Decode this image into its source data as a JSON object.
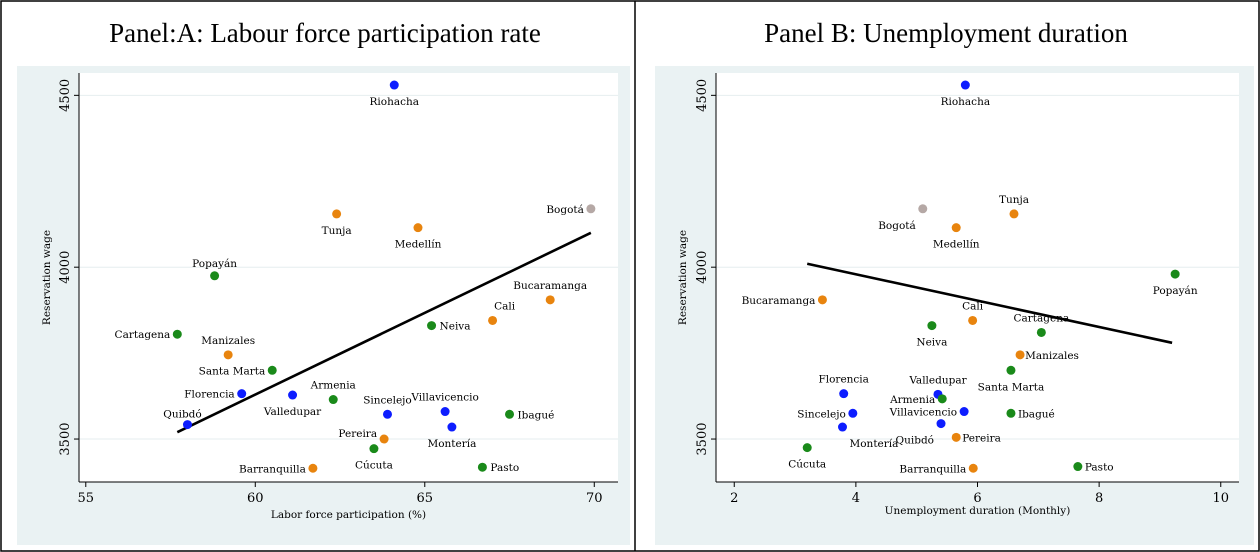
{
  "colors": {
    "blue": "#0d1dff",
    "orange": "#e8840e",
    "green": "#1a8a1a",
    "grey": "#b5a8a5",
    "plot_bg": "#eaf2f3",
    "fit_line": "#000000"
  },
  "chart_data": [
    {
      "type": "scatter",
      "title": "Panel:A: Labour force participation rate",
      "xlabel": "Labor force participation (%)",
      "ylabel": "Reservation wage",
      "xlim": [
        54.8,
        70.7
      ],
      "ylim": [
        3375,
        4565
      ],
      "xticks": [
        55,
        60,
        65,
        70
      ],
      "yticks": [
        3500,
        4000,
        4500
      ],
      "grid": true,
      "fit_line": {
        "x": [
          57.7,
          69.9
        ],
        "y": [
          3520,
          4100
        ]
      },
      "points": [
        {
          "label": "Riohacha",
          "x": 64.1,
          "y": 4530,
          "color": "blue"
        },
        {
          "label": "Tunja",
          "x": 62.4,
          "y": 4155,
          "color": "orange"
        },
        {
          "label": "Medellín",
          "x": 64.8,
          "y": 4115,
          "color": "orange"
        },
        {
          "label": "Bogotá",
          "x": 69.9,
          "y": 4170,
          "color": "grey"
        },
        {
          "label": "Popayán",
          "x": 58.8,
          "y": 3975,
          "color": "green"
        },
        {
          "label": "Bucaramanga",
          "x": 68.7,
          "y": 3905,
          "color": "orange"
        },
        {
          "label": "Cali",
          "x": 67.0,
          "y": 3845,
          "color": "orange"
        },
        {
          "label": "Neiva",
          "x": 65.2,
          "y": 3830,
          "color": "green"
        },
        {
          "label": "Cartagena",
          "x": 57.7,
          "y": 3805,
          "color": "green"
        },
        {
          "label": "Manizales",
          "x": 59.2,
          "y": 3745,
          "color": "orange"
        },
        {
          "label": "Santa Marta",
          "x": 60.5,
          "y": 3700,
          "color": "green"
        },
        {
          "label": "Florencia",
          "x": 59.6,
          "y": 3632,
          "color": "blue"
        },
        {
          "label": "Valledupar",
          "x": 61.1,
          "y": 3628,
          "color": "blue"
        },
        {
          "label": "Armenia",
          "x": 62.3,
          "y": 3615,
          "color": "green"
        },
        {
          "label": "Sincelejo",
          "x": 63.9,
          "y": 3572,
          "color": "blue"
        },
        {
          "label": "Villavicencio",
          "x": 65.6,
          "y": 3580,
          "color": "blue"
        },
        {
          "label": "Ibagué",
          "x": 67.5,
          "y": 3572,
          "color": "green"
        },
        {
          "label": "Quibdó",
          "x": 58.0,
          "y": 3542,
          "color": "blue"
        },
        {
          "label": "Montería",
          "x": 65.8,
          "y": 3535,
          "color": "blue"
        },
        {
          "label": "Pereira",
          "x": 63.8,
          "y": 3500,
          "color": "orange"
        },
        {
          "label": "Cúcuta",
          "x": 63.5,
          "y": 3472,
          "color": "green"
        },
        {
          "label": "Barranquilla",
          "x": 61.7,
          "y": 3415,
          "color": "orange"
        },
        {
          "label": "Pasto",
          "x": 66.7,
          "y": 3418,
          "color": "green"
        }
      ]
    },
    {
      "type": "scatter",
      "title": "Panel B: Unemployment duration",
      "xlabel": "Unemployment duration (Monthly)",
      "ylabel": "Reservation wage",
      "xlim": [
        1.7,
        10.3
      ],
      "ylim": [
        3375,
        4565
      ],
      "xticks": [
        2,
        4,
        6,
        8,
        10
      ],
      "yticks": [
        3500,
        4000,
        4500
      ],
      "grid": true,
      "fit_line": {
        "x": [
          3.2,
          9.2
        ],
        "y": [
          4010,
          3780
        ]
      },
      "points": [
        {
          "label": "Riohacha",
          "x": 5.8,
          "y": 4530,
          "color": "blue"
        },
        {
          "label": "Tunja",
          "x": 6.6,
          "y": 4155,
          "color": "orange"
        },
        {
          "label": "Bogotá",
          "x": 5.1,
          "y": 4170,
          "color": "grey"
        },
        {
          "label": "Medellín",
          "x": 5.65,
          "y": 4115,
          "color": "orange"
        },
        {
          "label": "Popayán",
          "x": 9.25,
          "y": 3980,
          "color": "green"
        },
        {
          "label": "Bucaramanga",
          "x": 3.45,
          "y": 3905,
          "color": "orange"
        },
        {
          "label": "Cali",
          "x": 5.92,
          "y": 3845,
          "color": "orange"
        },
        {
          "label": "Neiva",
          "x": 5.25,
          "y": 3830,
          "color": "green"
        },
        {
          "label": "Cartagena",
          "x": 7.05,
          "y": 3810,
          "color": "green"
        },
        {
          "label": "Manizales",
          "x": 6.7,
          "y": 3745,
          "color": "orange"
        },
        {
          "label": "Santa Marta",
          "x": 6.55,
          "y": 3700,
          "color": "green"
        },
        {
          "label": "Florencia",
          "x": 3.8,
          "y": 3632,
          "color": "blue"
        },
        {
          "label": "Valledupar",
          "x": 5.35,
          "y": 3630,
          "color": "blue"
        },
        {
          "label": "Armenia",
          "x": 5.42,
          "y": 3617,
          "color": "green"
        },
        {
          "label": "Villavicencio",
          "x": 5.78,
          "y": 3580,
          "color": "blue"
        },
        {
          "label": "Sincelejo",
          "x": 3.95,
          "y": 3575,
          "color": "blue"
        },
        {
          "label": "Ibagué",
          "x": 6.55,
          "y": 3575,
          "color": "green"
        },
        {
          "label": "Montería",
          "x": 3.78,
          "y": 3535,
          "color": "blue"
        },
        {
          "label": "Quibdó",
          "x": 5.4,
          "y": 3545,
          "color": "blue"
        },
        {
          "label": "Pereira",
          "x": 5.65,
          "y": 3505,
          "color": "orange"
        },
        {
          "label": "Cúcuta",
          "x": 3.2,
          "y": 3475,
          "color": "green"
        },
        {
          "label": "Barranquilla",
          "x": 5.93,
          "y": 3415,
          "color": "orange"
        },
        {
          "label": "Pasto",
          "x": 7.65,
          "y": 3420,
          "color": "green"
        }
      ]
    }
  ]
}
